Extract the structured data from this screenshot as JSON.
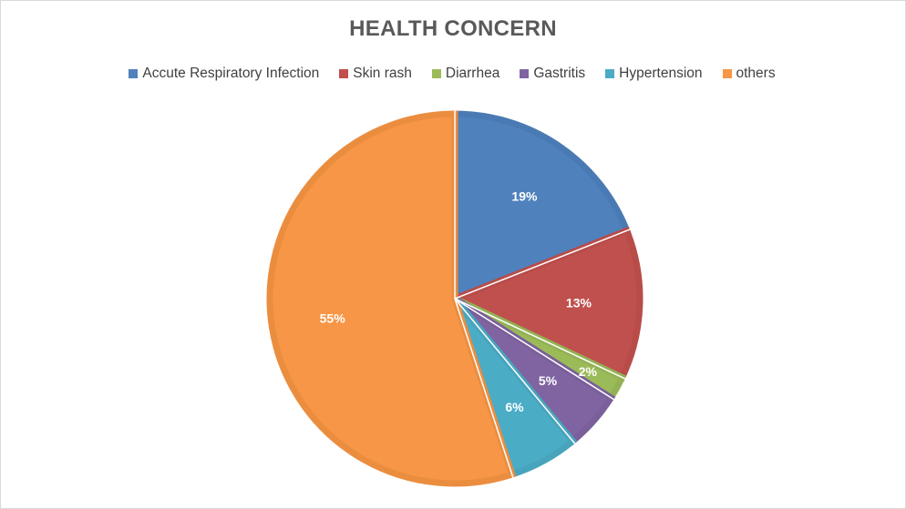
{
  "chart_data": {
    "type": "pie",
    "title": "HEALTH CONCERN",
    "legend_position": "top",
    "categories": [
      "Accute Respiratory Infection",
      "Skin rash",
      "Diarrhea",
      "Gastritis",
      "Hypertension",
      "others"
    ],
    "values": [
      19,
      13,
      2,
      5,
      6,
      55
    ],
    "labels": [
      "19%",
      "13%",
      "2%",
      "5%",
      "6%",
      "55%"
    ],
    "colors": [
      "#4f81bd",
      "#c0504d",
      "#9bbb59",
      "#8064a2",
      "#4bacc6",
      "#f79646"
    ],
    "border_colors": [
      "#4a7ab3",
      "#b84c49",
      "#93b253",
      "#7a5f9a",
      "#47a4bc",
      "#eb8d3f"
    ]
  }
}
